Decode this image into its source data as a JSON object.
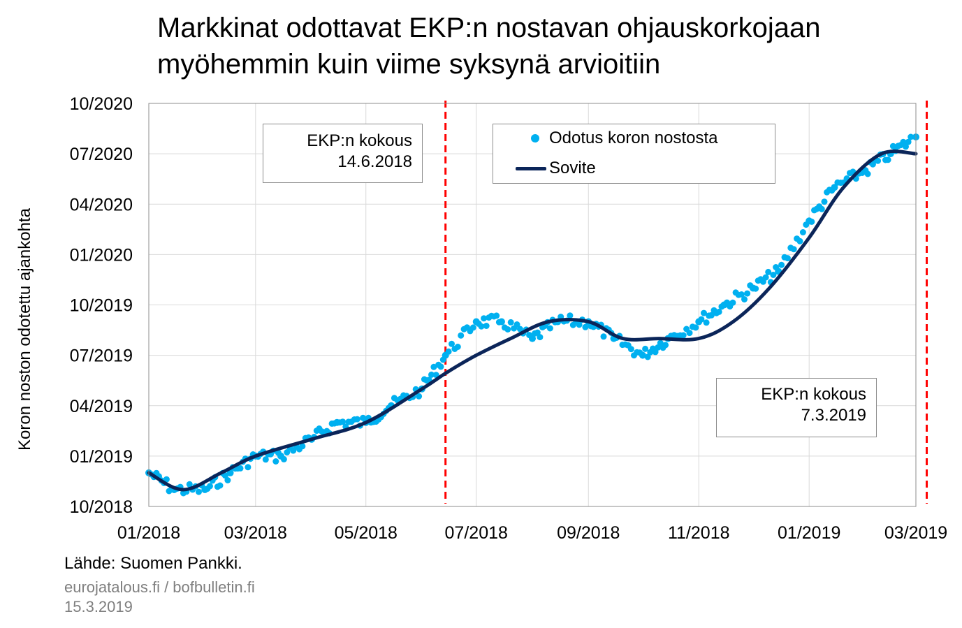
{
  "title_line1": "Markkinat odottavat EKP:n nostavan ohjauskorkojaan",
  "title_line2": "myöhemmin kuin viime syksynä arvioitiin",
  "source": "Lähde: Suomen Pankki.",
  "site": "eurojatalous.fi  / bofbulletin.fi",
  "date": "15.3.2019",
  "annotations": [
    {
      "line1": "EKP:n kokous",
      "line2": "14.6.2018"
    },
    {
      "line1": "EKP:n kokous",
      "line2": "7.3.2019"
    }
  ],
  "legend": {
    "scatter": "Odotus koron nostosta",
    "fit": "Sovite"
  },
  "colors": {
    "scatter": "#00B0F0",
    "fit": "#0B2559",
    "vline": "#FF0000",
    "grid": "#D9D9D9"
  },
  "chart_data": {
    "type": "scatter",
    "title": "Markkinat odottavat EKP:n nostavan ohjauskorkojaan myöhemmin kuin viime syksynä arvioitiin",
    "xlabel": "",
    "ylabel": "Koron noston odotettu ajankohta",
    "x_ticks": [
      "01/2018",
      "03/2018",
      "05/2018",
      "07/2018",
      "09/2018",
      "11/2018",
      "01/2019",
      "03/2019"
    ],
    "y_ticks": [
      "10/2018",
      "01/2019",
      "04/2019",
      "07/2019",
      "10/2019",
      "01/2020",
      "04/2020",
      "07/2020",
      "10/2020"
    ],
    "xlim": [
      "2018-01-01",
      "2019-03-01"
    ],
    "ylim": [
      "2018-10",
      "2020-10"
    ],
    "grid": true,
    "legend_position": "top-center",
    "vlines": [
      "2018-06-14",
      "2019-03-07"
    ],
    "series": [
      {
        "name": "Odotus koron nostosta",
        "type": "scatter",
        "x": [
          "2018-01-01",
          "2018-01-15",
          "2018-02-01",
          "2018-02-15",
          "2018-03-01",
          "2018-03-15",
          "2018-04-01",
          "2018-04-15",
          "2018-05-01",
          "2018-05-15",
          "2018-06-01",
          "2018-06-14",
          "2018-07-01",
          "2018-07-15",
          "2018-08-01",
          "2018-08-15",
          "2018-09-01",
          "2018-09-15",
          "2018-10-01",
          "2018-10-15",
          "2018-11-01",
          "2018-11-15",
          "2018-12-01",
          "2018-12-15",
          "2019-01-01",
          "2019-01-15",
          "2019-02-01",
          "2019-02-15",
          "2019-03-01"
        ],
        "y": [
          "2018-12",
          "2018-11",
          "2018-11",
          "2018-12",
          "2019-01",
          "2019-01",
          "2019-02",
          "2019-03",
          "2019-03",
          "2019-04",
          "2019-05",
          "2019-07",
          "2019-09",
          "2019-09",
          "2019-08",
          "2019-09",
          "2019-09",
          "2019-08",
          "2019-07",
          "2019-08",
          "2019-09",
          "2019-10",
          "2019-11",
          "2019-12",
          "2020-03",
          "2020-05",
          "2020-06",
          "2020-07",
          "2020-08"
        ]
      },
      {
        "name": "Sovite",
        "type": "line",
        "x": [
          "2018-01-01",
          "2018-01-20",
          "2018-02-10",
          "2018-03-01",
          "2018-04-01",
          "2018-05-01",
          "2018-06-01",
          "2018-06-15",
          "2018-07-01",
          "2018-07-20",
          "2018-08-10",
          "2018-09-01",
          "2018-09-20",
          "2018-10-10",
          "2018-11-01",
          "2018-11-20",
          "2018-12-10",
          "2019-01-01",
          "2019-01-20",
          "2019-02-10",
          "2019-03-01"
        ],
        "y": [
          "2018-12",
          "2018-11",
          "2018-12",
          "2019-01",
          "2019-02",
          "2019-03",
          "2019-05",
          "2019-06",
          "2019-07",
          "2019-08",
          "2019-09",
          "2019-09",
          "2019-08",
          "2019-08",
          "2019-08",
          "2019-09",
          "2019-11",
          "2020-02",
          "2020-05",
          "2020-07",
          "2020-07"
        ]
      }
    ]
  }
}
